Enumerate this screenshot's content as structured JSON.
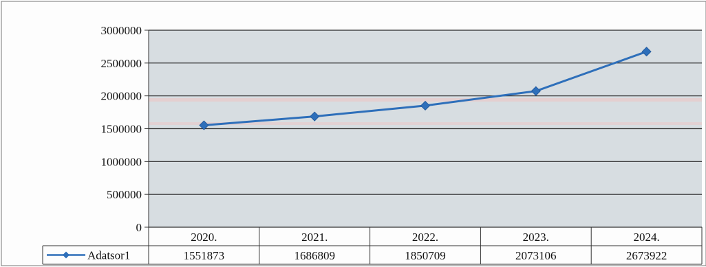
{
  "chart_data": {
    "type": "line",
    "title": "",
    "xlabel": "",
    "ylabel": "",
    "categories": [
      "2020.",
      "2021.",
      "2022.",
      "2023.",
      "2024."
    ],
    "series": [
      {
        "name": "Adatsor1",
        "values": [
          1551873,
          1686809,
          1850709,
          2073106,
          2673922
        ],
        "color": "#2e6fba",
        "marker": "diamond"
      }
    ],
    "ylim": [
      0,
      3000000
    ],
    "yticks": [
      0,
      500000,
      1000000,
      1500000,
      2000000,
      2500000,
      3000000
    ],
    "ytick_labels": [
      "0",
      "500000",
      "1000000",
      "1500000",
      "2000000",
      "2500000",
      "3000000"
    ],
    "grid": true,
    "legend": "data-table-left",
    "data_table": true,
    "colors": {
      "plot_background": "#d7dde1",
      "gridline": "#2a2a2a",
      "line": "#2e6fba"
    }
  }
}
